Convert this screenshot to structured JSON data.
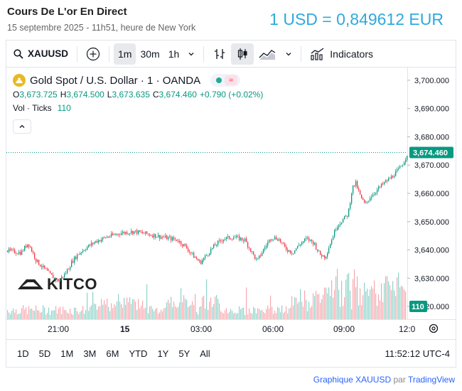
{
  "header": {
    "title": "Cours De L'or En Direct",
    "subtitle": "15 septembre 2025 - 11h51, heure de New York",
    "rate": "1 USD = 0,849612 EUR"
  },
  "toolbar": {
    "symbol": "XAUUSD",
    "intervals": [
      "1m",
      "30m",
      "1h"
    ],
    "active_interval": "1m",
    "indicators_label": "Indicators"
  },
  "legend": {
    "title": "Gold Spot / U.S. Dollar · 1 · OANDA",
    "o_label": "O",
    "o_value": "3,673.725",
    "h_label": "H",
    "h_value": "3,674.500",
    "l_label": "L",
    "l_value": "3,673.635",
    "c_label": "C",
    "c_value": "3,674.460",
    "change": "+0.790 (+0.02%)",
    "volume_label": "Vol · Ticks",
    "volume_value": "110"
  },
  "watermark": {
    "text": "KITCO"
  },
  "timeframes": [
    "1D",
    "5D",
    "1M",
    "3M",
    "6M",
    "YTD",
    "1Y",
    "5Y",
    "All"
  ],
  "clock": "11:52:12 UTC-4",
  "footer": {
    "link_text": "Graphique XAUUSD",
    "by_text": "par",
    "brand": "TradingView"
  },
  "colors": {
    "up": "#089981",
    "down": "#f23645",
    "accent": "#2eaadc",
    "vol_up": "#8ed3c9",
    "vol_down": "#f7a7ae"
  },
  "chart_data": {
    "type": "candlestick",
    "y_ticks": [
      "3,700.000",
      "3,690.000",
      "3,680.000",
      "3,670.000",
      "3,660.000",
      "3,650.000",
      "3,640.000",
      "3,630.000",
      "3,620.000"
    ],
    "y_tick_values": [
      3700,
      3690,
      3680,
      3670,
      3660,
      3650,
      3640,
      3630,
      3620
    ],
    "ylim": [
      3615.5,
      3704.5
    ],
    "x_ticks": [
      "21:00",
      "15",
      "03:00",
      "06:00",
      "09:00",
      "12:0"
    ],
    "x_tick_bold": [
      false,
      true,
      false,
      false,
      false,
      false
    ],
    "last_price": 3674.46,
    "last_price_label": "3,674.460",
    "last_volume_label": "110",
    "price_path": [
      [
        0,
        3639.8
      ],
      [
        20,
        3639.0
      ],
      [
        30,
        3642.5
      ],
      [
        42,
        3636.0
      ],
      [
        52,
        3633.5
      ],
      [
        62,
        3631.0
      ],
      [
        72,
        3629.0
      ],
      [
        82,
        3631.5
      ],
      [
        92,
        3636.0
      ],
      [
        100,
        3638.5
      ],
      [
        110,
        3640.5
      ],
      [
        125,
        3643.0
      ],
      [
        140,
        3644.5
      ],
      [
        160,
        3646.0
      ],
      [
        180,
        3646.5
      ],
      [
        200,
        3645.5
      ],
      [
        220,
        3644.5
      ],
      [
        240,
        3643.5
      ],
      [
        252,
        3641.0
      ],
      [
        262,
        3638.0
      ],
      [
        272,
        3635.5
      ],
      [
        282,
        3638.5
      ],
      [
        292,
        3641.5
      ],
      [
        305,
        3644.0
      ],
      [
        320,
        3644.5
      ],
      [
        335,
        3643.5
      ],
      [
        345,
        3639.0
      ],
      [
        352,
        3636.0
      ],
      [
        362,
        3640.5
      ],
      [
        372,
        3644.5
      ],
      [
        382,
        3644.0
      ],
      [
        392,
        3640.5
      ],
      [
        402,
        3639.0
      ],
      [
        412,
        3642.0
      ],
      [
        422,
        3644.0
      ],
      [
        432,
        3642.5
      ],
      [
        440,
        3638.5
      ],
      [
        448,
        3637.5
      ],
      [
        456,
        3643.0
      ],
      [
        464,
        3648.5
      ],
      [
        472,
        3650.5
      ],
      [
        480,
        3652.5
      ],
      [
        486,
        3662.0
      ],
      [
        491,
        3663.5
      ],
      [
        498,
        3658.5
      ],
      [
        504,
        3656.0
      ],
      [
        512,
        3659.0
      ],
      [
        520,
        3661.0
      ],
      [
        530,
        3663.5
      ],
      [
        540,
        3665.5
      ],
      [
        550,
        3668.0
      ],
      [
        556,
        3670.0
      ],
      [
        560,
        3672.0
      ],
      [
        564,
        3674.46
      ]
    ]
  }
}
